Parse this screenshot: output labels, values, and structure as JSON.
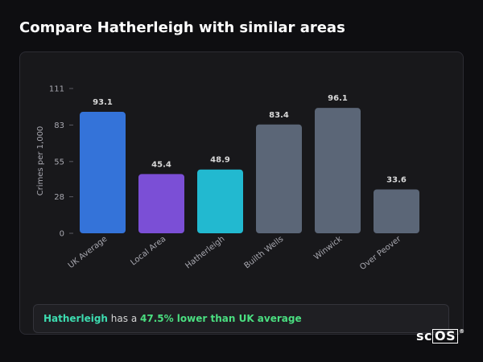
{
  "header": {
    "title": "Compare Hatherleigh with similar areas"
  },
  "callout": {
    "area": "Hatherleigh",
    "middle": " has a ",
    "difference": "47.5% lower than UK average"
  },
  "logo": {
    "text_a": "sc",
    "text_b": "OS",
    "mark": "®"
  },
  "colors": {
    "uk_average": "#3473d9",
    "local_area": "#7b4fd6",
    "hatherleigh": "#22b9d0",
    "other": "#5b6677",
    "axis_text": "#a8a8b0",
    "label_text": "#d8d8d8"
  },
  "chart_data": {
    "type": "bar",
    "title": "",
    "xlabel": "",
    "ylabel": "Crimes per 1,000",
    "ylim": [
      0,
      111
    ],
    "yticks": [
      0,
      28,
      55,
      83,
      111
    ],
    "grid": false,
    "categories": [
      "UK Average",
      "Local Area",
      "Hatherleigh",
      "Builth Wells",
      "Winwick",
      "Over Peover"
    ],
    "values": [
      93.1,
      45.4,
      48.9,
      83.4,
      96.1,
      33.6
    ],
    "value_labels": [
      "93.1",
      "45.4",
      "48.9",
      "83.4",
      "96.1",
      "33.6"
    ],
    "bar_colors": [
      "#3473d9",
      "#7b4fd6",
      "#22b9d0",
      "#5b6677",
      "#5b6677",
      "#5b6677"
    ]
  }
}
